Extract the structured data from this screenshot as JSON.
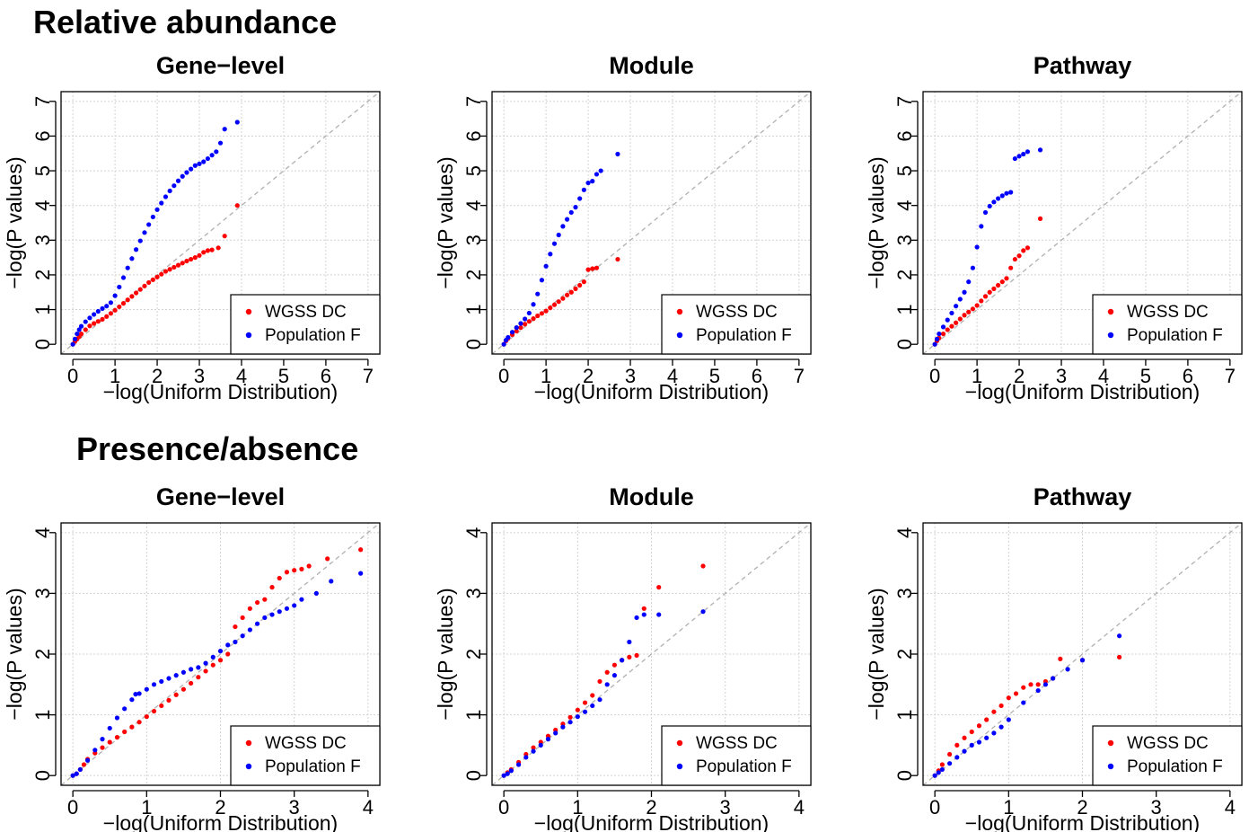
{
  "sections": [
    {
      "heading": "Relative abundance"
    },
    {
      "heading": "Presence/absence"
    }
  ],
  "chart_data": [
    {
      "type": "scatter",
      "section": "Relative abundance",
      "title": "Gene−level",
      "xlabel": "−log(Uniform Distribution)",
      "ylabel": "−log(P values)",
      "xlim": [
        0,
        7
      ],
      "ylim": [
        0,
        7
      ],
      "xticks": [
        0,
        1,
        2,
        3,
        4,
        5,
        6,
        7
      ],
      "yticks": [
        0,
        1,
        2,
        3,
        4,
        5,
        6,
        7
      ],
      "grid": true,
      "reference_line": "y = x",
      "legend_position": "bottom-right",
      "series": [
        {
          "name": "WGSS DC",
          "color": "#ff0000",
          "x": [
            0,
            0.05,
            0.1,
            0.15,
            0.2,
            0.3,
            0.4,
            0.5,
            0.6,
            0.7,
            0.8,
            0.9,
            1.0,
            1.1,
            1.2,
            1.3,
            1.4,
            1.5,
            1.6,
            1.7,
            1.8,
            1.9,
            2.0,
            2.1,
            2.2,
            2.3,
            2.4,
            2.5,
            2.6,
            2.7,
            2.8,
            2.9,
            3.0,
            3.1,
            3.2,
            3.3,
            3.45,
            3.6,
            3.9
          ],
          "y": [
            0,
            0.08,
            0.15,
            0.22,
            0.3,
            0.42,
            0.53,
            0.6,
            0.66,
            0.72,
            0.8,
            0.89,
            0.98,
            1.08,
            1.18,
            1.28,
            1.38,
            1.48,
            1.58,
            1.68,
            1.78,
            1.86,
            1.94,
            2.02,
            2.1,
            2.16,
            2.22,
            2.28,
            2.34,
            2.4,
            2.45,
            2.5,
            2.56,
            2.65,
            2.7,
            2.72,
            2.78,
            3.12,
            4.0
          ]
        },
        {
          "name": "Population F",
          "color": "#0000ff",
          "x": [
            0,
            0.05,
            0.1,
            0.15,
            0.2,
            0.3,
            0.4,
            0.5,
            0.6,
            0.7,
            0.8,
            0.9,
            1.0,
            1.1,
            1.2,
            1.3,
            1.4,
            1.5,
            1.6,
            1.7,
            1.8,
            1.9,
            2.0,
            2.1,
            2.2,
            2.3,
            2.4,
            2.5,
            2.6,
            2.7,
            2.8,
            2.9,
            3.0,
            3.1,
            3.2,
            3.3,
            3.4,
            3.5,
            3.6,
            3.9
          ],
          "y": [
            0,
            0.15,
            0.3,
            0.42,
            0.52,
            0.65,
            0.76,
            0.86,
            0.95,
            1.03,
            1.1,
            1.2,
            1.4,
            1.65,
            1.92,
            2.2,
            2.47,
            2.73,
            2.98,
            3.22,
            3.45,
            3.67,
            3.88,
            4.07,
            4.25,
            4.42,
            4.57,
            4.71,
            4.84,
            4.95,
            5.05,
            5.15,
            5.2,
            5.26,
            5.35,
            5.45,
            5.55,
            5.8,
            6.2,
            6.4
          ]
        }
      ]
    },
    {
      "type": "scatter",
      "section": "Relative abundance",
      "title": "Module",
      "xlabel": "−log(Uniform Distribution)",
      "ylabel": "−log(P values)",
      "xlim": [
        0,
        7
      ],
      "ylim": [
        0,
        7
      ],
      "xticks": [
        0,
        1,
        2,
        3,
        4,
        5,
        6,
        7
      ],
      "yticks": [
        0,
        1,
        2,
        3,
        4,
        5,
        6,
        7
      ],
      "grid": true,
      "reference_line": "y = x",
      "legend_position": "bottom-right",
      "series": [
        {
          "name": "WGSS DC",
          "color": "#ff0000",
          "x": [
            0,
            0.05,
            0.1,
            0.2,
            0.3,
            0.4,
            0.5,
            0.6,
            0.7,
            0.8,
            0.9,
            1.0,
            1.1,
            1.2,
            1.3,
            1.4,
            1.5,
            1.6,
            1.7,
            1.8,
            1.9,
            2.0,
            2.1,
            2.2,
            2.7
          ],
          "y": [
            0,
            0.1,
            0.17,
            0.28,
            0.38,
            0.48,
            0.58,
            0.66,
            0.74,
            0.82,
            0.89,
            0.96,
            1.05,
            1.14,
            1.23,
            1.32,
            1.42,
            1.5,
            1.6,
            1.7,
            1.8,
            2.15,
            2.18,
            2.2,
            2.45
          ]
        },
        {
          "name": "Population F",
          "color": "#0000ff",
          "x": [
            0,
            0.05,
            0.1,
            0.2,
            0.3,
            0.4,
            0.5,
            0.6,
            0.7,
            0.8,
            0.9,
            1.0,
            1.1,
            1.2,
            1.3,
            1.4,
            1.5,
            1.6,
            1.7,
            1.8,
            1.9,
            2.0,
            2.1,
            2.2,
            2.3,
            2.7
          ],
          "y": [
            0,
            0.12,
            0.2,
            0.35,
            0.48,
            0.6,
            0.73,
            0.9,
            1.15,
            1.45,
            1.85,
            2.25,
            2.6,
            2.9,
            3.15,
            3.4,
            3.6,
            3.8,
            3.95,
            4.2,
            4.45,
            4.65,
            4.7,
            4.9,
            5.0,
            5.48
          ]
        }
      ]
    },
    {
      "type": "scatter",
      "section": "Relative abundance",
      "title": "Pathway",
      "xlabel": "−log(Uniform Distribution)",
      "ylabel": "−log(P values)",
      "xlim": [
        0,
        7
      ],
      "ylim": [
        0,
        7
      ],
      "xticks": [
        0,
        1,
        2,
        3,
        4,
        5,
        6,
        7
      ],
      "yticks": [
        0,
        1,
        2,
        3,
        4,
        5,
        6,
        7
      ],
      "grid": true,
      "reference_line": "y = x",
      "legend_position": "bottom-right",
      "series": [
        {
          "name": "WGSS DC",
          "color": "#ff0000",
          "x": [
            0,
            0.05,
            0.1,
            0.2,
            0.3,
            0.4,
            0.5,
            0.6,
            0.7,
            0.8,
            0.9,
            1.0,
            1.1,
            1.2,
            1.3,
            1.4,
            1.5,
            1.6,
            1.7,
            1.8,
            1.9,
            2.0,
            2.1,
            2.2,
            2.5
          ],
          "y": [
            0,
            0.1,
            0.18,
            0.3,
            0.42,
            0.52,
            0.62,
            0.73,
            0.84,
            0.93,
            1.02,
            1.12,
            1.25,
            1.38,
            1.5,
            1.6,
            1.7,
            1.8,
            1.9,
            2.2,
            2.45,
            2.55,
            2.7,
            2.78,
            3.62
          ]
        },
        {
          "name": "Population F",
          "color": "#0000ff",
          "x": [
            0,
            0.05,
            0.1,
            0.2,
            0.3,
            0.4,
            0.5,
            0.6,
            0.7,
            0.8,
            0.9,
            1.0,
            1.1,
            1.2,
            1.3,
            1.4,
            1.5,
            1.6,
            1.7,
            1.8,
            1.9,
            2.0,
            2.1,
            2.2,
            2.5
          ],
          "y": [
            0,
            0.15,
            0.3,
            0.5,
            0.7,
            0.9,
            1.1,
            1.3,
            1.5,
            1.8,
            2.2,
            2.8,
            3.4,
            3.8,
            3.98,
            4.1,
            4.2,
            4.28,
            4.35,
            4.38,
            5.35,
            5.42,
            5.48,
            5.55,
            5.6
          ]
        }
      ]
    },
    {
      "type": "scatter",
      "section": "Presence/absence",
      "title": "Gene−level",
      "xlabel": "−log(Uniform Distribution)",
      "ylabel": "−log(P values)",
      "xlim": [
        0,
        4
      ],
      "ylim": [
        0,
        4
      ],
      "xticks": [
        0,
        1,
        2,
        3,
        4
      ],
      "yticks": [
        0,
        1,
        2,
        3,
        4
      ],
      "grid": true,
      "reference_line": "y = x",
      "legend_position": "bottom-right",
      "series": [
        {
          "name": "WGSS DC",
          "color": "#ff0000",
          "x": [
            0,
            0.05,
            0.1,
            0.15,
            0.2,
            0.3,
            0.4,
            0.5,
            0.6,
            0.7,
            0.8,
            0.9,
            1.0,
            1.1,
            1.2,
            1.3,
            1.4,
            1.5,
            1.6,
            1.7,
            1.8,
            1.9,
            2.0,
            2.1,
            2.2,
            2.3,
            2.4,
            2.5,
            2.6,
            2.7,
            2.8,
            2.9,
            3.0,
            3.1,
            3.2,
            3.45,
            3.9
          ],
          "y": [
            0,
            0.03,
            0.1,
            0.18,
            0.27,
            0.37,
            0.46,
            0.55,
            0.63,
            0.72,
            0.8,
            0.88,
            0.97,
            1.06,
            1.15,
            1.24,
            1.33,
            1.42,
            1.52,
            1.62,
            1.72,
            1.82,
            1.9,
            2.0,
            2.45,
            2.6,
            2.75,
            2.85,
            2.9,
            3.1,
            3.25,
            3.35,
            3.38,
            3.4,
            3.45,
            3.57,
            3.72
          ]
        },
        {
          "name": "Population F",
          "color": "#0000ff",
          "x": [
            0,
            0.05,
            0.1,
            0.2,
            0.3,
            0.4,
            0.5,
            0.6,
            0.7,
            0.8,
            0.85,
            0.9,
            1.0,
            1.1,
            1.2,
            1.3,
            1.4,
            1.5,
            1.6,
            1.7,
            1.8,
            1.9,
            2.0,
            2.1,
            2.2,
            2.3,
            2.4,
            2.5,
            2.6,
            2.7,
            2.8,
            2.9,
            3.0,
            3.1,
            3.3,
            3.5,
            3.9
          ],
          "y": [
            0,
            0.03,
            0.1,
            0.25,
            0.42,
            0.6,
            0.78,
            0.95,
            1.1,
            1.25,
            1.34,
            1.35,
            1.42,
            1.5,
            1.55,
            1.6,
            1.65,
            1.7,
            1.75,
            1.78,
            1.85,
            1.95,
            2.05,
            2.15,
            2.2,
            2.3,
            2.4,
            2.5,
            2.6,
            2.65,
            2.7,
            2.75,
            2.8,
            2.9,
            3.0,
            3.2,
            3.33
          ]
        }
      ]
    },
    {
      "type": "scatter",
      "section": "Presence/absence",
      "title": "Module",
      "xlabel": "−log(Uniform Distribution)",
      "ylabel": "−log(P values)",
      "xlim": [
        0,
        4
      ],
      "ylim": [
        0,
        4
      ],
      "xticks": [
        0,
        1,
        2,
        3,
        4
      ],
      "yticks": [
        0,
        1,
        2,
        3,
        4
      ],
      "grid": true,
      "reference_line": "y = x",
      "legend_position": "bottom-right",
      "series": [
        {
          "name": "WGSS DC",
          "color": "#ff0000",
          "x": [
            0,
            0.05,
            0.1,
            0.2,
            0.3,
            0.4,
            0.5,
            0.6,
            0.7,
            0.8,
            0.9,
            1.0,
            1.1,
            1.2,
            1.3,
            1.4,
            1.5,
            1.6,
            1.7,
            1.8,
            1.9,
            2.1,
            2.7
          ],
          "y": [
            0,
            0.05,
            0.1,
            0.22,
            0.35,
            0.46,
            0.55,
            0.65,
            0.75,
            0.85,
            0.96,
            1.08,
            1.2,
            1.32,
            1.55,
            1.7,
            1.82,
            1.9,
            1.95,
            1.98,
            2.75,
            3.1,
            3.45
          ]
        },
        {
          "name": "Population F",
          "color": "#0000ff",
          "x": [
            0,
            0.05,
            0.1,
            0.2,
            0.3,
            0.4,
            0.5,
            0.6,
            0.7,
            0.8,
            0.9,
            1.0,
            1.1,
            1.2,
            1.3,
            1.4,
            1.5,
            1.6,
            1.7,
            1.8,
            1.9,
            2.1,
            2.7
          ],
          "y": [
            0,
            0.03,
            0.08,
            0.18,
            0.3,
            0.4,
            0.5,
            0.6,
            0.7,
            0.8,
            0.88,
            0.97,
            1.05,
            1.15,
            1.25,
            1.5,
            1.65,
            1.9,
            2.2,
            2.6,
            2.65,
            2.65,
            2.7
          ]
        }
      ]
    },
    {
      "type": "scatter",
      "section": "Presence/absence",
      "title": "Pathway",
      "xlabel": "−log(Uniform Distribution)",
      "ylabel": "−log(P values)",
      "xlim": [
        0,
        4
      ],
      "ylim": [
        0,
        4
      ],
      "xticks": [
        0,
        1,
        2,
        3,
        4
      ],
      "yticks": [
        0,
        1,
        2,
        3,
        4
      ],
      "grid": true,
      "reference_line": "y = x",
      "legend_position": "bottom-right",
      "series": [
        {
          "name": "WGSS DC",
          "color": "#ff0000",
          "x": [
            0,
            0.05,
            0.1,
            0.2,
            0.3,
            0.4,
            0.5,
            0.6,
            0.7,
            0.8,
            0.9,
            1.0,
            1.1,
            1.2,
            1.3,
            1.4,
            1.5,
            1.6,
            1.7,
            2.0,
            2.5
          ],
          "y": [
            0,
            0.08,
            0.18,
            0.35,
            0.5,
            0.62,
            0.72,
            0.82,
            0.92,
            1.05,
            1.15,
            1.28,
            1.35,
            1.45,
            1.5,
            1.5,
            1.55,
            1.6,
            1.92,
            1.9,
            1.95
          ]
        },
        {
          "name": "Population F",
          "color": "#0000ff",
          "x": [
            0,
            0.05,
            0.1,
            0.2,
            0.3,
            0.4,
            0.5,
            0.6,
            0.7,
            0.8,
            0.9,
            1.0,
            1.2,
            1.4,
            1.5,
            1.6,
            1.8,
            2.0,
            2.5
          ],
          "y": [
            0,
            0.05,
            0.1,
            0.2,
            0.3,
            0.4,
            0.5,
            0.55,
            0.62,
            0.7,
            0.8,
            0.92,
            1.2,
            1.4,
            1.5,
            1.6,
            1.75,
            1.9,
            2.3
          ]
        }
      ]
    }
  ]
}
